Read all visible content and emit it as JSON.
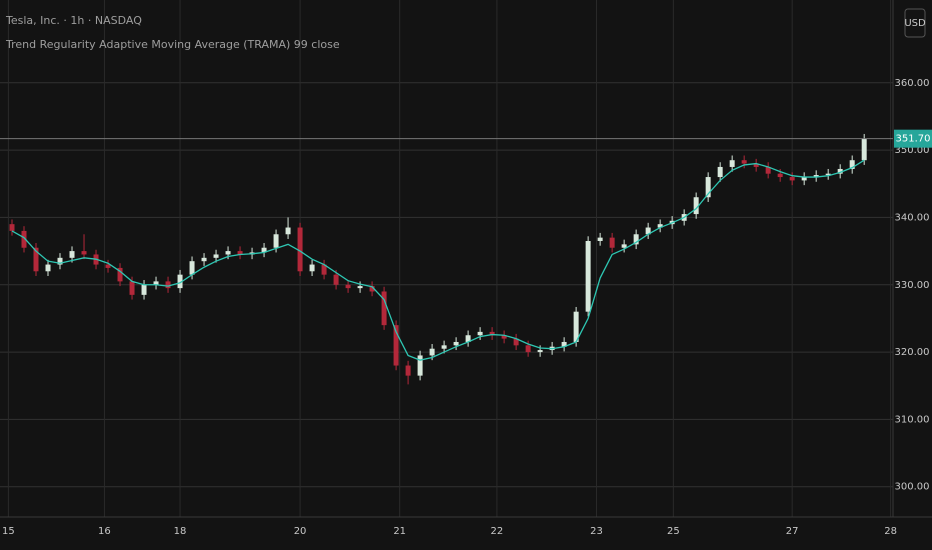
{
  "chart_data": {
    "type": "candlestick",
    "title": "Tesla, Inc. · 1h · NASDAQ",
    "subtitle": "Trend Regularity Adaptive Moving Average (TRAMA) 99 close",
    "currency": "USD",
    "xlim": [
      -1,
      73.4
    ],
    "xticks": [
      {
        "value": -0.3,
        "label": "15"
      },
      {
        "value": 7.7,
        "label": "16"
      },
      {
        "value": 14,
        "label": "18"
      },
      {
        "value": 24,
        "label": "20"
      },
      {
        "value": 32.3,
        "label": "21"
      },
      {
        "value": 40.4,
        "label": "22"
      },
      {
        "value": 48.7,
        "label": "23"
      },
      {
        "value": 55.1,
        "label": "25"
      },
      {
        "value": 65,
        "label": "27"
      },
      {
        "value": 73.2,
        "label": "28"
      }
    ],
    "ylim": [
      295.5,
      372.3
    ],
    "yticks": [
      {
        "value": 300,
        "label": "300.00"
      },
      {
        "value": 310,
        "label": "310.00"
      },
      {
        "value": 320,
        "label": "320.00"
      },
      {
        "value": 330,
        "label": "330.00"
      },
      {
        "value": 340,
        "label": "340.00"
      },
      {
        "value": 350,
        "label": "350.00"
      },
      {
        "value": 360,
        "label": "360.00"
      }
    ],
    "grid": true,
    "up_color": "#d8e8dc",
    "down_color": "#b3283a",
    "open": [
      339,
      338,
      335.5,
      332,
      333,
      334,
      335,
      334.5,
      333,
      332.5,
      330.5,
      328.5,
      330,
      330.5,
      329.5,
      331.5,
      333.5,
      334,
      334.5,
      335,
      334.5,
      334.8,
      335.5,
      337.5,
      338.5,
      332,
      333,
      331.5,
      330,
      329.5,
      329.8,
      329,
      324,
      318,
      316.5,
      319.5,
      320.5,
      321,
      321.5,
      322.5,
      323,
      322.5,
      322,
      321,
      320,
      320.3,
      320.8,
      321.5,
      326,
      336.5,
      337,
      335.5,
      336,
      337.5,
      338.5,
      339,
      339.5,
      340.5,
      343,
      346,
      347.5,
      348.5,
      348,
      347.5,
      346.5,
      346,
      345.5,
      346,
      346.3,
      346.5,
      347.2,
      348.5
    ],
    "high": [
      339.7,
      338.7,
      336.2,
      333.7,
      334.7,
      335.7,
      337.5,
      335.2,
      333.7,
      333.2,
      331.2,
      330.7,
      331.2,
      331.2,
      332.2,
      334.2,
      334.7,
      335.2,
      335.7,
      335.7,
      335.5,
      336.2,
      338.2,
      340,
      339.2,
      333.7,
      333.7,
      332.2,
      330.7,
      330.5,
      330.5,
      329.7,
      324.7,
      318.7,
      320.2,
      321.2,
      321.7,
      322.2,
      323.2,
      323.7,
      323.7,
      323.2,
      322.7,
      321.7,
      321,
      321.5,
      322.2,
      326.7,
      337.2,
      337.7,
      337.7,
      336.7,
      338.2,
      339.2,
      339.7,
      340.2,
      341.2,
      343.7,
      346.7,
      348.2,
      349.2,
      349.2,
      348.7,
      348.2,
      347.2,
      346.7,
      346.7,
      347,
      347.2,
      347.9,
      349.2,
      352.4
    ],
    "low": [
      337.3,
      334.8,
      331.3,
      331.3,
      332.3,
      333.3,
      333.8,
      332.3,
      331.8,
      329.8,
      327.8,
      327.8,
      329.3,
      328.8,
      328.8,
      330.8,
      332.8,
      333.3,
      333.8,
      333.8,
      333.8,
      334.1,
      334.8,
      336.8,
      331.3,
      331.3,
      330.8,
      329.3,
      328.8,
      328.8,
      328.3,
      323.3,
      317.3,
      315.2,
      315.8,
      318.8,
      319.8,
      320.3,
      320.8,
      321.8,
      321.8,
      321.3,
      320.3,
      319.3,
      319.3,
      319.6,
      320.1,
      320.8,
      325.3,
      335.8,
      334.8,
      334.8,
      335.3,
      336.8,
      337.8,
      338.3,
      338.8,
      339.8,
      342.3,
      345.3,
      346.8,
      347.3,
      346.8,
      345.8,
      345.3,
      344.8,
      344.8,
      345.3,
      345.6,
      345.8,
      346.5,
      347.8
    ],
    "close": [
      338,
      335.5,
      332,
      333,
      334,
      335,
      334.5,
      333,
      332.5,
      330.5,
      328.5,
      330,
      330.5,
      329.5,
      331.5,
      333.5,
      334,
      334.5,
      335,
      334.5,
      334.8,
      335.5,
      337.5,
      338.5,
      332,
      333,
      331.5,
      330,
      329.5,
      329.8,
      329,
      324,
      318,
      316.5,
      319.5,
      320.5,
      321,
      321.5,
      322.5,
      323,
      322.5,
      322,
      321,
      320,
      320.3,
      320.8,
      321.5,
      326,
      336.5,
      337,
      335.5,
      336,
      337.5,
      338.5,
      339,
      339.5,
      340.5,
      343,
      346,
      347.5,
      348.5,
      348,
      347.5,
      346.5,
      346,
      345.5,
      346,
      346.3,
      346.5,
      347.2,
      348.5,
      351.7
    ],
    "ma": {
      "color": "#2ec7b3",
      "values": [
        338,
        337,
        335,
        333.5,
        333.2,
        333.6,
        334,
        333.8,
        333.2,
        332,
        330.5,
        330,
        330,
        329.8,
        330.3,
        331.5,
        332.6,
        333.5,
        334.2,
        334.5,
        334.6,
        334.8,
        335.4,
        336,
        335,
        333.8,
        333,
        331.8,
        330.6,
        330.1,
        329.7,
        327.8,
        323,
        319.5,
        318.8,
        319.2,
        320,
        320.8,
        321.5,
        322.3,
        322.6,
        322.5,
        322,
        321.2,
        320.6,
        320.5,
        320.8,
        321.5,
        325,
        331,
        334.5,
        335.3,
        336.3,
        337.5,
        338.5,
        339.2,
        340,
        341.3,
        343.5,
        345.5,
        347,
        347.8,
        348,
        347.5,
        346.8,
        346.2,
        346,
        346,
        346.2,
        346.7,
        347.4,
        348.5
      ]
    },
    "last_price": {
      "value": 351.7,
      "label": "351.70",
      "color": "#26a69a"
    }
  }
}
